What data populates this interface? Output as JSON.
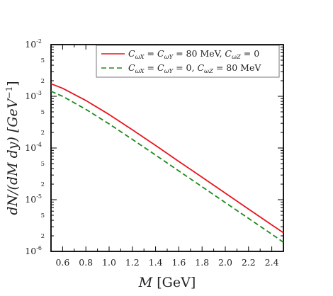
{
  "chart_data": {
    "type": "line",
    "xlabel": "M [GeV]",
    "ylabel": "dN/(dM dy) [GeV⁻¹]",
    "xlim": [
      0.5,
      2.5
    ],
    "ylim": [
      1e-06,
      0.01
    ],
    "yscale": "log",
    "x_ticks": [
      "0.6",
      "0.8",
      "1.0",
      "1.2",
      "1.4",
      "1.6",
      "1.8",
      "2.0",
      "2.2",
      "2.4"
    ],
    "y_major_ticks": [
      {
        "base": "10",
        "exp": "-2"
      },
      {
        "base": "10",
        "exp": "-3"
      },
      {
        "base": "10",
        "exp": "-4"
      },
      {
        "base": "10",
        "exp": "-5"
      },
      {
        "base": "10",
        "exp": "-6"
      }
    ],
    "y_minor_labels": [
      "5",
      "2"
    ],
    "legend_position": "top-right",
    "series": [
      {
        "name": "C_ωX = C_ωY = 80 MeV, C_ωZ = 0",
        "color": "#e8141c",
        "dash": "solid",
        "x": [
          0.5,
          0.6,
          0.8,
          1.0,
          1.2,
          1.4,
          1.6,
          1.8,
          2.0,
          2.2,
          2.4,
          2.5
        ],
        "y": [
          0.00175,
          0.00143,
          0.00083,
          0.000445,
          0.000225,
          0.000112,
          5.5e-05,
          2.72e-05,
          1.34e-05,
          6.6e-06,
          3.25e-06,
          2.3e-06
        ]
      },
      {
        "name": "C_ωX = C_ωY = 0, C_ωZ = 80 MeV",
        "color": "#1a8a1a",
        "dash": "dashed",
        "x": [
          0.5,
          0.6,
          0.8,
          1.0,
          1.2,
          1.4,
          1.6,
          1.8,
          2.0,
          2.2,
          2.4,
          2.5
        ],
        "y": [
          0.00125,
          0.001,
          0.00056,
          0.000292,
          0.000147,
          7.3e-05,
          3.6e-05,
          1.78e-05,
          8.8e-06,
          4.35e-06,
          2.15e-06,
          1.5e-06
        ]
      }
    ],
    "legend": [
      {
        "C1": "C",
        "s1": "ωX",
        "eq1": " = ",
        "C2": "C",
        "s2": "ωY",
        "eq2": " = 80 MeV, ",
        "C3": "C",
        "s3": "ωZ",
        "eq3": " = 0"
      },
      {
        "C1": "C",
        "s1": "ωX",
        "eq1": " = ",
        "C2": "C",
        "s2": "ωY",
        "eq2": " = 0, ",
        "C3": "C",
        "s3": "ωZ",
        "eq3": " = 80 MeV"
      }
    ],
    "xlabel_parts": {
      "sym": "M",
      "unit": "[GeV]"
    },
    "ylabel_parts": {
      "main": "dN/(dM dy) [GeV",
      "exp": "−1",
      "close": "]"
    }
  }
}
